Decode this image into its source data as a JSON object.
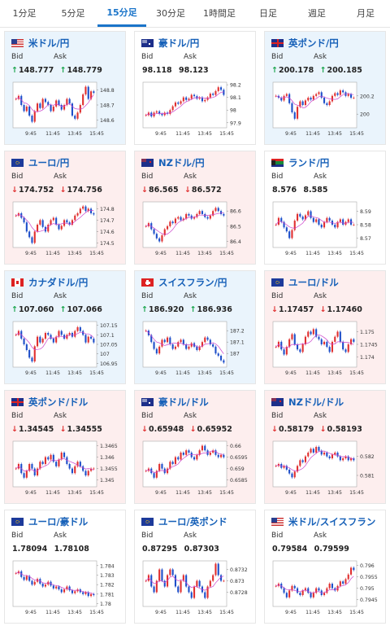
{
  "tabs": [
    "1分足",
    "5分足",
    "15分足",
    "30分足",
    "1時間足",
    "日足",
    "週足",
    "月足"
  ],
  "active_tab": 2,
  "labels": {
    "bid": "Bid",
    "ask": "Ask"
  },
  "colors": {
    "accent": "#1a74c9",
    "title": "#1660b8",
    "up_candle": "#e03030",
    "down_candle": "#1e4fc9",
    "ma_line": "#cc44cc",
    "up_arrow": "#17a34a",
    "down_arrow": "#e03030"
  },
  "x_ticks": [
    "9:45",
    "11:45",
    "13:45",
    "15:45"
  ],
  "cards": [
    {
      "pair": "米ドル/円",
      "flag": "us-jp",
      "dir": "up",
      "bid": "148.777",
      "ask": "148.779",
      "y_ticks": [
        "148.8",
        "148.7",
        "148.6"
      ],
      "y_range": [
        148.55,
        148.85
      ],
      "series": [
        148.74,
        148.76,
        148.7,
        148.66,
        148.69,
        148.63,
        148.59,
        148.66,
        148.71,
        148.68,
        148.74,
        148.72,
        148.7,
        148.66,
        148.69,
        148.73,
        148.7,
        148.67,
        148.7,
        148.74,
        148.71,
        148.63,
        148.61,
        148.65,
        148.7,
        148.77,
        148.82,
        148.74,
        148.79,
        148.78
      ]
    },
    {
      "pair": "豪ドル/円",
      "flag": "au-jp",
      "dir": "flat",
      "bid": "98.118",
      "ask": "98.123",
      "y_ticks": [
        "98.2",
        "98.1",
        "98",
        "97.9"
      ],
      "y_range": [
        97.86,
        98.22
      ],
      "series": [
        97.96,
        97.98,
        97.95,
        97.98,
        97.99,
        97.97,
        97.96,
        97.98,
        97.97,
        98.0,
        98.03,
        98.06,
        98.05,
        98.07,
        98.1,
        98.08,
        98.09,
        98.12,
        98.11,
        98.09,
        98.1,
        98.07,
        98.08,
        98.1,
        98.13,
        98.12,
        98.15,
        98.18,
        98.16,
        98.12
      ]
    },
    {
      "pair": "英ポンド/円",
      "flag": "gb-jp",
      "dir": "up",
      "bid": "200.178",
      "ask": "200.185",
      "y_ticks": [
        "200.2",
        "200"
      ],
      "y_range": [
        199.85,
        200.35
      ],
      "series": [
        200.2,
        200.18,
        200.15,
        200.2,
        200.22,
        200.12,
        200.02,
        199.95,
        200.08,
        200.14,
        200.1,
        200.15,
        200.18,
        200.16,
        200.2,
        200.22,
        200.24,
        200.18,
        200.12,
        200.1,
        200.14,
        200.2,
        200.23,
        200.21,
        200.26,
        200.24,
        200.2,
        200.22,
        200.18,
        200.18
      ]
    },
    {
      "pair": "ユーロ/円",
      "flag": "eu-jp",
      "dir": "down",
      "bid": "174.752",
      "ask": "174.756",
      "y_ticks": [
        "174.8",
        "174.7",
        "174.6",
        "174.5"
      ],
      "y_range": [
        174.46,
        174.86
      ],
      "series": [
        174.74,
        174.76,
        174.72,
        174.68,
        174.6,
        174.55,
        174.5,
        174.6,
        174.66,
        174.7,
        174.64,
        174.6,
        174.66,
        174.7,
        174.72,
        174.66,
        174.62,
        174.65,
        174.7,
        174.68,
        174.66,
        174.7,
        174.74,
        174.76,
        174.8,
        174.82,
        174.78,
        174.8,
        174.76,
        174.75
      ]
    },
    {
      "pair": "NZドル/円",
      "flag": "nz-jp",
      "dir": "down",
      "bid": "86.565",
      "ask": "86.572",
      "y_ticks": [
        "86.6",
        "86.5",
        "86.4"
      ],
      "y_range": [
        86.36,
        86.66
      ],
      "series": [
        86.5,
        86.52,
        86.48,
        86.45,
        86.42,
        86.4,
        86.44,
        86.48,
        86.5,
        86.53,
        86.52,
        86.55,
        86.56,
        86.54,
        86.55,
        86.58,
        86.57,
        86.55,
        86.56,
        86.58,
        86.6,
        86.58,
        86.56,
        86.55,
        86.57,
        86.6,
        86.62,
        86.6,
        86.58,
        86.57
      ]
    },
    {
      "pair": "ランド/円",
      "flag": "za-jp",
      "dir": "flat",
      "bid": "8.576",
      "ask": "8.585",
      "y_ticks": [
        "8.59",
        "8.58",
        "8.57"
      ],
      "y_range": [
        8.563,
        8.597
      ],
      "series": [
        8.58,
        8.585,
        8.582,
        8.578,
        8.575,
        8.57,
        8.576,
        8.583,
        8.588,
        8.586,
        8.584,
        8.587,
        8.59,
        8.585,
        8.582,
        8.584,
        8.58,
        8.578,
        8.582,
        8.585,
        8.583,
        8.58,
        8.578,
        8.582,
        8.584,
        8.58,
        8.582,
        8.584,
        8.58,
        8.58
      ]
    },
    {
      "pair": "カナダドル/円",
      "flag": "ca-jp",
      "dir": "up",
      "bid": "107.060",
      "ask": "107.066",
      "y_ticks": [
        "107.15",
        "107.1",
        "107.05",
        "107",
        "106.95"
      ],
      "y_range": [
        106.93,
        107.17
      ],
      "series": [
        107.1,
        107.12,
        107.08,
        107.05,
        107.02,
        106.98,
        106.96,
        107.04,
        107.09,
        107.06,
        107.08,
        107.11,
        107.1,
        107.08,
        107.06,
        107.09,
        107.12,
        107.1,
        107.08,
        107.1,
        107.11,
        107.09,
        107.12,
        107.14,
        107.12,
        107.1,
        107.06,
        107.09,
        107.08,
        107.06
      ]
    },
    {
      "pair": "スイスフラン/円",
      "flag": "ch-jp",
      "dir": "up",
      "bid": "186.920",
      "ask": "186.936",
      "y_ticks": [
        "187.2",
        "187.1",
        "187"
      ],
      "y_range": [
        186.88,
        187.28
      ],
      "series": [
        187.2,
        187.16,
        187.1,
        187.04,
        187.0,
        187.06,
        187.12,
        187.1,
        187.14,
        187.08,
        187.04,
        187.06,
        187.1,
        187.12,
        187.08,
        187.04,
        187.06,
        187.09,
        187.06,
        187.03,
        187.06,
        187.1,
        187.14,
        187.12,
        187.08,
        187.06,
        187.0,
        186.98,
        186.94,
        186.92
      ]
    },
    {
      "pair": "ユーロ/ドル",
      "flag": "eu-us",
      "dir": "down",
      "bid": "1.17457",
      "ask": "1.17460",
      "y_ticks": [
        "1.175",
        "1.1745",
        "1.174"
      ],
      "y_range": [
        1.1736,
        1.1754
      ],
      "series": [
        1.1744,
        1.1746,
        1.1743,
        1.1741,
        1.1744,
        1.1747,
        1.1749,
        1.1745,
        1.1743,
        1.1742,
        1.1745,
        1.1748,
        1.175,
        1.1749,
        1.1751,
        1.1748,
        1.1747,
        1.1745,
        1.1746,
        1.1744,
        1.1742,
        1.1746,
        1.1748,
        1.175,
        1.1746,
        1.1743,
        1.1742,
        1.1745,
        1.1747,
        1.1746
      ]
    },
    {
      "pair": "英ポンド/ドル",
      "flag": "gb-us",
      "dir": "down",
      "bid": "1.34545",
      "ask": "1.34555",
      "y_ticks": [
        "1.3465",
        "1.346",
        "1.3455",
        "1.345"
      ],
      "y_range": [
        1.3447,
        1.3467
      ],
      "series": [
        1.3455,
        1.3457,
        1.3453,
        1.3451,
        1.3454,
        1.3457,
        1.3455,
        1.3452,
        1.3455,
        1.3458,
        1.3457,
        1.346,
        1.3459,
        1.3461,
        1.3458,
        1.3456,
        1.3459,
        1.3462,
        1.346,
        1.3457,
        1.3455,
        1.3453,
        1.3456,
        1.3458,
        1.3456,
        1.3454,
        1.3452,
        1.3454,
        1.3455,
        1.3455
      ]
    },
    {
      "pair": "豪ドル/ドル",
      "flag": "au-us",
      "dir": "down",
      "bid": "0.65948",
      "ask": "0.65952",
      "y_ticks": [
        "0.66",
        "0.6595",
        "0.659",
        "0.6585"
      ],
      "y_range": [
        0.6582,
        0.6602
      ],
      "series": [
        0.6589,
        0.659,
        0.6588,
        0.6586,
        0.6589,
        0.6592,
        0.659,
        0.6588,
        0.659,
        0.6593,
        0.6592,
        0.6595,
        0.6594,
        0.6597,
        0.6596,
        0.6598,
        0.6597,
        0.6595,
        0.6594,
        0.6596,
        0.6598,
        0.66,
        0.6598,
        0.6596,
        0.6597,
        0.6598,
        0.6596,
        0.6595,
        0.6596,
        0.6595
      ]
    },
    {
      "pair": "NZドル/ドル",
      "flag": "nz-us",
      "dir": "down",
      "bid": "0.58179",
      "ask": "0.58193",
      "y_ticks": [
        "0.582",
        "0.581"
      ],
      "y_range": [
        0.5804,
        0.5828
      ],
      "series": [
        0.5815,
        0.5816,
        0.5814,
        0.5815,
        0.5813,
        0.5811,
        0.5809,
        0.5812,
        0.5815,
        0.5818,
        0.5817,
        0.582,
        0.5822,
        0.5824,
        0.5822,
        0.5825,
        0.5823,
        0.5821,
        0.5822,
        0.582,
        0.5819,
        0.5821,
        0.5822,
        0.582,
        0.5818,
        0.5819,
        0.582,
        0.5818,
        0.5819,
        0.5818
      ]
    },
    {
      "pair": "ユーロ/豪ドル",
      "flag": "eu-au",
      "dir": "flat",
      "bid": "1.78094",
      "ask": "1.78108",
      "y_ticks": [
        "1.784",
        "1.783",
        "1.782",
        "1.781",
        "1.78"
      ],
      "y_range": [
        1.7797,
        1.7845
      ],
      "series": [
        1.7832,
        1.7834,
        1.7828,
        1.7825,
        1.7829,
        1.7824,
        1.782,
        1.7823,
        1.7826,
        1.7821,
        1.7818,
        1.782,
        1.7823,
        1.7819,
        1.7816,
        1.7818,
        1.7815,
        1.7812,
        1.7815,
        1.7818,
        1.7814,
        1.7811,
        1.7813,
        1.7815,
        1.7812,
        1.781,
        1.7812,
        1.7808,
        1.781,
        1.7809
      ]
    },
    {
      "pair": "ユーロ/英ポンド",
      "flag": "eu-gb",
      "dir": "flat",
      "bid": "0.87295",
      "ask": "0.87303",
      "y_ticks": [
        "0.8732",
        "0.873",
        "0.8728"
      ],
      "y_range": [
        0.87255,
        0.87335
      ],
      "series": [
        0.873,
        0.8731,
        0.8729,
        0.8728,
        0.873,
        0.8732,
        0.873,
        0.8729,
        0.8731,
        0.8732,
        0.8731,
        0.8729,
        0.8728,
        0.873,
        0.8731,
        0.8729,
        0.8728,
        0.8727,
        0.8729,
        0.873,
        0.8729,
        0.8728,
        0.8727,
        0.8729,
        0.873,
        0.8731,
        0.8733,
        0.8731,
        0.873,
        0.873
      ]
    },
    {
      "pair": "米ドル/スイスフラン",
      "flag": "us-ch",
      "dir": "flat",
      "bid": "0.79584",
      "ask": "0.79599",
      "y_ticks": [
        "0.796",
        "0.7955",
        "0.795",
        "0.7945"
      ],
      "y_range": [
        0.7942,
        0.7962
      ],
      "series": [
        0.7951,
        0.7952,
        0.795,
        0.7948,
        0.7946,
        0.7949,
        0.7951,
        0.795,
        0.7948,
        0.7947,
        0.7949,
        0.795,
        0.7948,
        0.7946,
        0.7948,
        0.795,
        0.7949,
        0.7947,
        0.7948,
        0.795,
        0.7952,
        0.795,
        0.7949,
        0.7951,
        0.7953,
        0.7952,
        0.7954,
        0.7956,
        0.7959,
        0.7958
      ]
    }
  ]
}
